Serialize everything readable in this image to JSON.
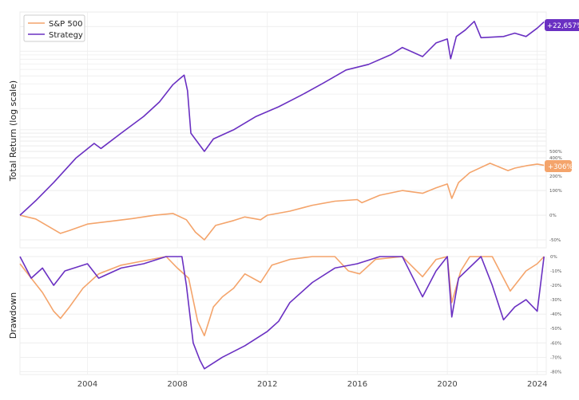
{
  "chart_data": [
    {
      "type": "line",
      "ylabel": "Total Return (log scale)",
      "yscale": "log",
      "xlim": [
        2001.0,
        2024.4
      ],
      "ylim": [
        -60,
        30000
      ],
      "yticks": [
        -50,
        0,
        100,
        200,
        300,
        400,
        500
      ],
      "ytick_labels": [
        "-50%",
        "0%",
        "100%",
        "200%",
        "300%",
        "400%",
        "500%"
      ],
      "grid": true,
      "legend": "top-left",
      "end_labels": [
        "+22,657%",
        "+306%"
      ],
      "series": [
        {
          "name": "S&P 500",
          "color": "#f4a46b",
          "x": [
            2001.0,
            2001.7,
            2002.3,
            2002.8,
            2003.2,
            2004.0,
            2005.0,
            2006.0,
            2007.0,
            2007.8,
            2008.4,
            2008.8,
            2009.2,
            2009.7,
            2010.5,
            2011.0,
            2011.7,
            2012.0,
            2013.0,
            2014.0,
            2015.0,
            2016.0,
            2016.2,
            2017.0,
            2018.0,
            2018.9,
            2019.5,
            2020.0,
            2020.2,
            2020.5,
            2021.0,
            2021.9,
            2022.7,
            2023.0,
            2023.5,
            2024.0,
            2024.3
          ],
          "values": [
            0,
            -10,
            -28,
            -40,
            -35,
            -22,
            -16,
            -9,
            0,
            5,
            -12,
            -38,
            -50,
            -25,
            -14,
            -5,
            -12,
            0,
            12,
            32,
            48,
            55,
            42,
            75,
            100,
            85,
            115,
            140,
            60,
            150,
            230,
            330,
            250,
            275,
            300,
            320,
            306
          ]
        },
        {
          "name": "Strategy",
          "color": "#6a30c2",
          "x": [
            2001.0,
            2001.7,
            2002.5,
            2003.5,
            2004.3,
            2004.6,
            2005.5,
            2006.5,
            2007.2,
            2007.8,
            2008.1,
            2008.3,
            2008.45,
            2008.6,
            2009.2,
            2009.6,
            2010.5,
            2011.5,
            2012.5,
            2013.5,
            2014.5,
            2015.5,
            2016.5,
            2017.5,
            2018.0,
            2018.9,
            2019.5,
            2020.0,
            2020.15,
            2020.4,
            2020.8,
            2021.2,
            2021.5,
            2022.5,
            2023.0,
            2023.5,
            2024.0,
            2024.3
          ],
          "values": [
            0,
            50,
            150,
            400,
            650,
            550,
            900,
            1500,
            2300,
            3800,
            4500,
            5000,
            3200,
            900,
            500,
            750,
            1000,
            1500,
            2000,
            2800,
            4000,
            5800,
            6800,
            9000,
            11000,
            8500,
            12500,
            14000,
            8000,
            15000,
            18000,
            23000,
            14500,
            15000,
            16500,
            15000,
            19000,
            22657
          ]
        }
      ]
    },
    {
      "type": "line",
      "ylabel": "Drawdown",
      "xlim": [
        2001.0,
        2024.4
      ],
      "ylim": [
        -82,
        0
      ],
      "yticks": [
        0,
        -10,
        -20,
        -30,
        -40,
        -50,
        -60,
        -70,
        -80
      ],
      "ytick_labels": [
        "0%",
        "-10%",
        "-20%",
        "-30%",
        "-40%",
        "-50%",
        "-60%",
        "-70%",
        "-80%"
      ],
      "xticks": [
        2004,
        2008,
        2012,
        2016,
        2020,
        2024
      ],
      "xtick_labels": [
        "2004",
        "2008",
        "2012",
        "2016",
        "2020",
        "2024"
      ],
      "grid": true,
      "series": [
        {
          "name": "S&P 500",
          "color": "#f4a46b",
          "x": [
            2001.0,
            2001.5,
            2002.0,
            2002.5,
            2002.8,
            2003.2,
            2003.8,
            2004.5,
            2005.5,
            2006.5,
            2007.5,
            2008.0,
            2008.5,
            2008.9,
            2009.2,
            2009.6,
            2010.0,
            2010.5,
            2011.0,
            2011.7,
            2012.2,
            2013.0,
            2014.0,
            2015.0,
            2015.6,
            2016.1,
            2016.8,
            2018.0,
            2018.9,
            2019.5,
            2020.0,
            2020.2,
            2020.6,
            2021.0,
            2022.0,
            2022.8,
            2023.5,
            2024.0,
            2024.3
          ],
          "values": [
            -5,
            -15,
            -25,
            -38,
            -43,
            -35,
            -22,
            -12,
            -6,
            -3,
            0,
            -8,
            -15,
            -45,
            -55,
            -35,
            -28,
            -22,
            -12,
            -18,
            -6,
            -2,
            0,
            0,
            -10,
            -12,
            -2,
            0,
            -14,
            -2,
            0,
            -32,
            -10,
            0,
            0,
            -24,
            -10,
            -5,
            0
          ]
        },
        {
          "name": "Strategy",
          "color": "#6a30c2",
          "x": [
            2001.0,
            2001.5,
            2002.0,
            2002.5,
            2003.0,
            2004.0,
            2004.5,
            2005.5,
            2006.5,
            2007.5,
            2008.2,
            2008.4,
            2008.7,
            2009.0,
            2009.2,
            2010.0,
            2011.0,
            2012.0,
            2012.5,
            2013.0,
            2014.0,
            2015.0,
            2016.0,
            2017.0,
            2018.0,
            2018.9,
            2019.5,
            2020.0,
            2020.2,
            2020.5,
            2021.5,
            2022.0,
            2022.5,
            2023.0,
            2023.5,
            2024.0,
            2024.3
          ],
          "values": [
            0,
            -15,
            -8,
            -20,
            -10,
            -5,
            -15,
            -8,
            -5,
            0,
            0,
            -20,
            -60,
            -72,
            -78,
            -70,
            -62,
            -52,
            -45,
            -32,
            -18,
            -8,
            -5,
            0,
            0,
            -28,
            -10,
            0,
            -42,
            -15,
            0,
            -20,
            -44,
            -35,
            -30,
            -38,
            0
          ]
        }
      ]
    }
  ]
}
